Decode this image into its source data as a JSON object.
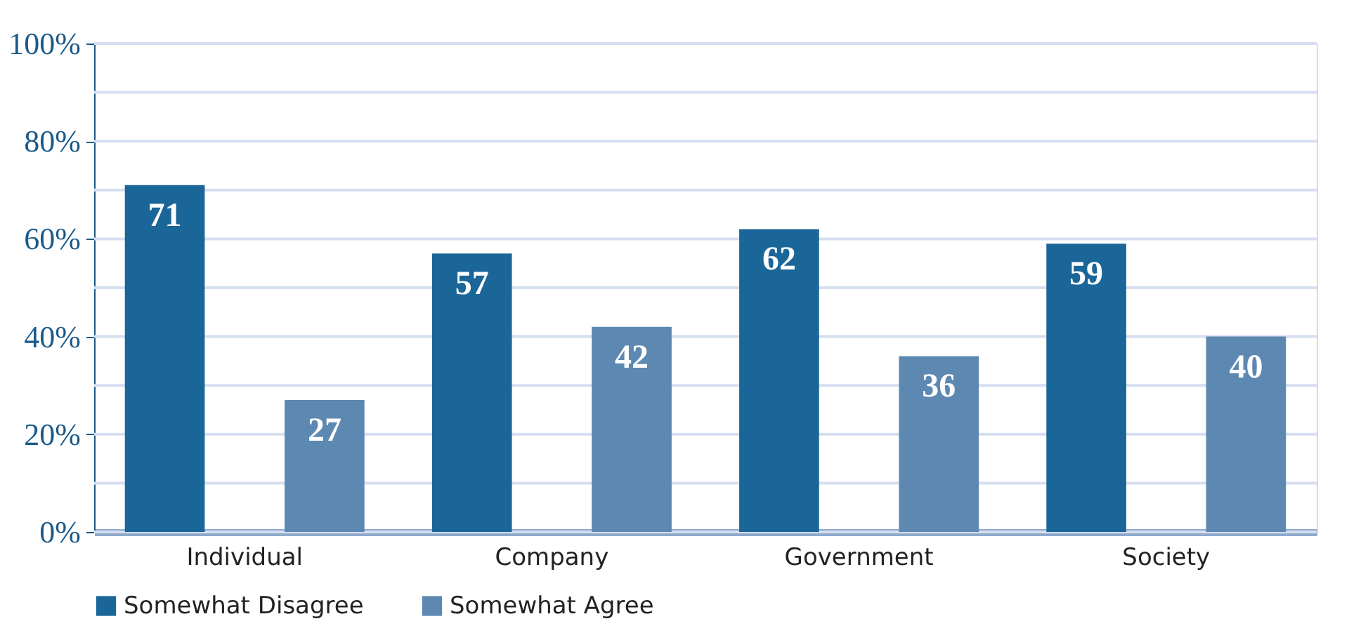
{
  "chart_data": {
    "type": "bar",
    "categories": [
      "Individual",
      "Company",
      "Government",
      "Society"
    ],
    "series": [
      {
        "name": "Somewhat Disagree",
        "color": "#1b6698",
        "values": [
          71,
          57,
          62,
          59
        ]
      },
      {
        "name": "Somewhat Agree",
        "color": "#5d88b2",
        "values": [
          27,
          42,
          36,
          40
        ]
      }
    ],
    "ylim": [
      0,
      100
    ],
    "yticks": [
      {
        "value": 0,
        "label": "0%"
      },
      {
        "value": 10,
        "label": null
      },
      {
        "value": 20,
        "label": "20%"
      },
      {
        "value": 30,
        "label": null
      },
      {
        "value": 40,
        "label": "40%"
      },
      {
        "value": 50,
        "label": null
      },
      {
        "value": 60,
        "label": "60%"
      },
      {
        "value": 70,
        "label": null
      },
      {
        "value": 80,
        "label": "80%"
      },
      {
        "value": 90,
        "label": null
      },
      {
        "value": 100,
        "label": "100%"
      }
    ],
    "grid": "y",
    "legend": "bottom",
    "data_labels": true
  }
}
